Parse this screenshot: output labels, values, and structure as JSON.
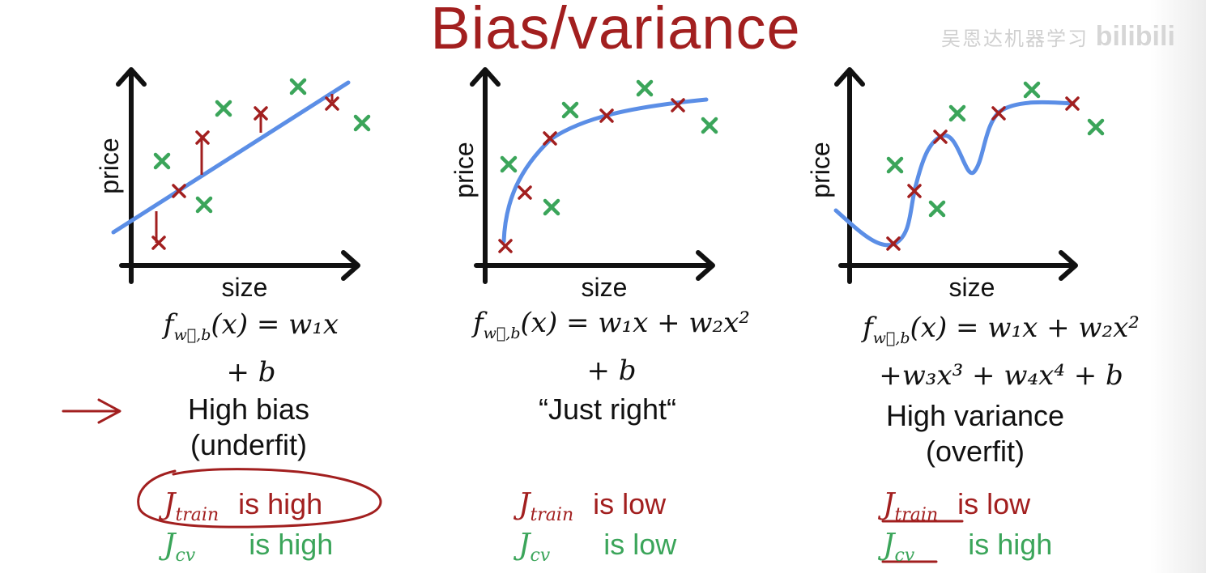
{
  "title": "Bias/variance",
  "watermark": "吴恩达机器学习",
  "watermark_logo": "bilibili",
  "colors": {
    "title": "#a21f1f",
    "train_point": "#a21f1f",
    "cv_point": "#3ba55a",
    "fit_curve": "#5b8ee6",
    "annotation": "#a21f1f"
  },
  "axis_labels": {
    "y": "price",
    "x": "size"
  },
  "panels": [
    {
      "formula_line1": "f",
      "formula_sub": "w⃗,b",
      "formula_rest": "(x) = w₁x",
      "formula_line2": "+ b",
      "label_line1": "High bias",
      "label_line2": "(underfit)",
      "j_train_symbol": "J",
      "j_train_sub": "train",
      "j_train_status": "is high",
      "j_cv_symbol": "J",
      "j_cv_sub": "cv",
      "j_cv_status": "is high"
    },
    {
      "formula_line1": "f",
      "formula_sub": "w⃗,b",
      "formula_rest": "(x) = w₁x + w₂x²",
      "formula_line2": "+ b",
      "label_line1": "“Just right“",
      "label_line2": "",
      "j_train_symbol": "J",
      "j_train_sub": "train",
      "j_train_status": "is low",
      "j_cv_symbol": "J",
      "j_cv_sub": "cv",
      "j_cv_status": "is low"
    },
    {
      "formula_line1": "f",
      "formula_sub": "w⃗,b",
      "formula_rest": "(x) = w₁x + w₂x²",
      "formula_line2": "+w₃x³ + w₄x⁴ + b",
      "label_line1": "High variance",
      "label_line2": "(overfit)",
      "j_train_symbol": "J",
      "j_train_sub": "train",
      "j_train_status": "is low",
      "j_cv_symbol": "J",
      "j_cv_sub": "cv",
      "j_cv_status": "is high"
    }
  ]
}
